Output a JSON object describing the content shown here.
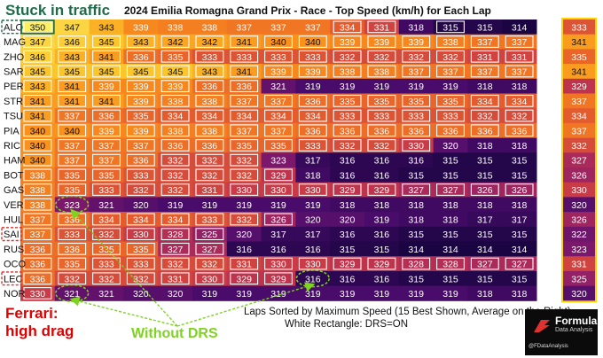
{
  "chart_data": {
    "type": "heatmap",
    "title": "2024 Emilia Romagna Grand Prix - Race - Top Speed (km/h) for Each Lap",
    "xlabel": "Laps Sorted by Maximum Speed (15 Best Shown, Average on the Right)",
    "note": "White Rectangle: DRS=ON",
    "unit": "km/h",
    "color_range": [
      314,
      350
    ],
    "colormap": [
      "#1a0442",
      "#4b0c6b",
      "#8c1c6b",
      "#c4364a",
      "#e8612b",
      "#f98e1b",
      "#fbc42a",
      "#fcef64"
    ],
    "rows": [
      {
        "driver": "ALO",
        "values": [
          350,
          347,
          343,
          339,
          338,
          338,
          337,
          337,
          337,
          334,
          331,
          318,
          315,
          315,
          314
        ],
        "average": 333,
        "drs": [
          true,
          false,
          false,
          false,
          false,
          false,
          false,
          false,
          false,
          true,
          true,
          false,
          true,
          false,
          false
        ]
      },
      {
        "driver": "MAG",
        "values": [
          347,
          346,
          345,
          343,
          342,
          342,
          341,
          340,
          340,
          339,
          339,
          339,
          338,
          337,
          337
        ],
        "average": 341,
        "drs": [
          true,
          true,
          true,
          true,
          true,
          true,
          true,
          true,
          true,
          true,
          true,
          true,
          true,
          true,
          true
        ]
      },
      {
        "driver": "ZHO",
        "values": [
          346,
          343,
          341,
          336,
          335,
          333,
          333,
          333,
          333,
          332,
          332,
          332,
          332,
          331,
          331
        ],
        "average": 335,
        "drs": [
          true,
          true,
          true,
          true,
          true,
          true,
          true,
          true,
          true,
          true,
          true,
          true,
          true,
          true,
          true
        ]
      },
      {
        "driver": "SAR",
        "values": [
          345,
          345,
          345,
          345,
          345,
          343,
          341,
          339,
          339,
          338,
          338,
          337,
          337,
          337,
          337
        ],
        "average": 341,
        "drs": [
          true,
          true,
          true,
          true,
          true,
          true,
          true,
          true,
          true,
          true,
          true,
          true,
          true,
          true,
          true
        ]
      },
      {
        "driver": "PER",
        "values": [
          343,
          341,
          339,
          339,
          339,
          336,
          336,
          321,
          319,
          319,
          319,
          319,
          319,
          318,
          318
        ],
        "average": 329,
        "drs": [
          true,
          true,
          true,
          true,
          true,
          true,
          true,
          false,
          false,
          false,
          false,
          false,
          false,
          false,
          false
        ]
      },
      {
        "driver": "STR",
        "values": [
          341,
          341,
          341,
          339,
          338,
          338,
          337,
          337,
          336,
          335,
          335,
          335,
          335,
          334,
          334
        ],
        "average": 337,
        "drs": [
          true,
          true,
          true,
          true,
          true,
          true,
          true,
          true,
          true,
          true,
          true,
          true,
          true,
          true,
          true
        ]
      },
      {
        "driver": "TSU",
        "values": [
          341,
          337,
          336,
          335,
          334,
          334,
          334,
          334,
          334,
          333,
          333,
          333,
          333,
          332,
          332
        ],
        "average": 334,
        "drs": [
          true,
          true,
          true,
          true,
          true,
          true,
          true,
          true,
          true,
          true,
          true,
          true,
          true,
          true,
          true
        ]
      },
      {
        "driver": "PIA",
        "values": [
          340,
          340,
          339,
          339,
          338,
          338,
          337,
          337,
          336,
          336,
          336,
          336,
          336,
          336,
          336
        ],
        "average": 337,
        "drs": [
          true,
          true,
          true,
          true,
          true,
          true,
          true,
          true,
          true,
          true,
          true,
          true,
          true,
          true,
          true
        ]
      },
      {
        "driver": "RIC",
        "values": [
          340,
          337,
          337,
          337,
          336,
          336,
          335,
          335,
          333,
          332,
          332,
          330,
          320,
          318,
          318
        ],
        "average": 332,
        "drs": [
          true,
          true,
          true,
          true,
          true,
          true,
          true,
          true,
          true,
          true,
          true,
          true,
          false,
          false,
          false
        ]
      },
      {
        "driver": "HAM",
        "values": [
          340,
          337,
          337,
          336,
          332,
          332,
          332,
          323,
          317,
          316,
          316,
          316,
          315,
          315,
          315
        ],
        "average": 327,
        "drs": [
          true,
          true,
          true,
          true,
          true,
          true,
          true,
          false,
          false,
          false,
          false,
          false,
          false,
          false,
          false
        ]
      },
      {
        "driver": "BOT",
        "values": [
          338,
          335,
          335,
          333,
          332,
          332,
          332,
          329,
          318,
          316,
          316,
          315,
          315,
          315,
          315
        ],
        "average": 326,
        "drs": [
          true,
          true,
          true,
          true,
          true,
          true,
          true,
          true,
          false,
          false,
          false,
          false,
          false,
          false,
          false
        ]
      },
      {
        "driver": "GAS",
        "values": [
          338,
          335,
          333,
          332,
          332,
          331,
          330,
          330,
          330,
          329,
          329,
          327,
          327,
          326,
          326
        ],
        "average": 330,
        "drs": [
          true,
          true,
          true,
          true,
          true,
          true,
          true,
          true,
          true,
          true,
          true,
          true,
          true,
          true,
          true
        ]
      },
      {
        "driver": "VER",
        "values": [
          338,
          323,
          321,
          320,
          319,
          319,
          319,
          319,
          319,
          318,
          318,
          318,
          318,
          318,
          318
        ],
        "average": 320,
        "drs": [
          true,
          false,
          false,
          false,
          false,
          false,
          false,
          false,
          false,
          false,
          false,
          false,
          false,
          false,
          false
        ]
      },
      {
        "driver": "HUL",
        "values": [
          337,
          336,
          334,
          334,
          334,
          333,
          332,
          326,
          320,
          320,
          319,
          318,
          318,
          317,
          317
        ],
        "average": 326,
        "drs": [
          true,
          true,
          true,
          true,
          true,
          true,
          true,
          true,
          false,
          false,
          false,
          false,
          false,
          false,
          false
        ]
      },
      {
        "driver": "SAI",
        "values": [
          337,
          333,
          332,
          330,
          328,
          325,
          320,
          317,
          317,
          316,
          316,
          315,
          315,
          315,
          315
        ],
        "average": 322,
        "drs": [
          true,
          true,
          true,
          true,
          true,
          true,
          false,
          false,
          false,
          false,
          false,
          false,
          false,
          false,
          false
        ]
      },
      {
        "driver": "RUS",
        "values": [
          336,
          336,
          335,
          335,
          327,
          327,
          316,
          316,
          316,
          315,
          315,
          314,
          314,
          314,
          314
        ],
        "average": 323,
        "drs": [
          true,
          true,
          true,
          true,
          true,
          true,
          false,
          false,
          false,
          false,
          false,
          false,
          false,
          false,
          false
        ]
      },
      {
        "driver": "OCO",
        "values": [
          336,
          335,
          333,
          333,
          332,
          332,
          331,
          330,
          330,
          329,
          329,
          328,
          328,
          327,
          327
        ],
        "average": 331,
        "drs": [
          true,
          true,
          true,
          true,
          true,
          true,
          true,
          true,
          true,
          true,
          true,
          true,
          true,
          true,
          true
        ]
      },
      {
        "driver": "LEC",
        "values": [
          336,
          332,
          332,
          332,
          331,
          330,
          329,
          329,
          316,
          316,
          316,
          315,
          315,
          315,
          315
        ],
        "average": 325,
        "drs": [
          true,
          true,
          true,
          true,
          true,
          true,
          true,
          true,
          false,
          false,
          false,
          false,
          false,
          false,
          false
        ]
      },
      {
        "driver": "NOR",
        "values": [
          330,
          321,
          321,
          320,
          320,
          319,
          319,
          319,
          319,
          319,
          319,
          319,
          319,
          318,
          318
        ],
        "average": 320,
        "drs": [
          true,
          false,
          false,
          false,
          false,
          false,
          false,
          false,
          false,
          false,
          false,
          false,
          false,
          false,
          false
        ]
      }
    ],
    "highlighted_drivers": [
      "ALO",
      "SAI",
      "LEC"
    ],
    "circled_cells": [
      {
        "driver": "VER",
        "lap_rank": 2
      },
      {
        "driver": "NOR",
        "lap_rank": 2
      },
      {
        "driver": "LEC",
        "lap_rank": 9
      }
    ],
    "annotations": {
      "stuck_in_traffic": "Stuck in traffic",
      "ferrari_line1": "Ferrari:",
      "ferrari_line2": "high drag",
      "without_drs": "Without DRS"
    },
    "colors": {
      "highlight_box": "#e0302a",
      "traffic_box": "#1f6b4a",
      "average_box": "#ffd400",
      "arrows": "#7ed321",
      "ferrari_text": "#e00000"
    }
  },
  "logo": {
    "line1": "Formula",
    "line2": "Data Analysis",
    "social": "@FDataAnalysis"
  }
}
